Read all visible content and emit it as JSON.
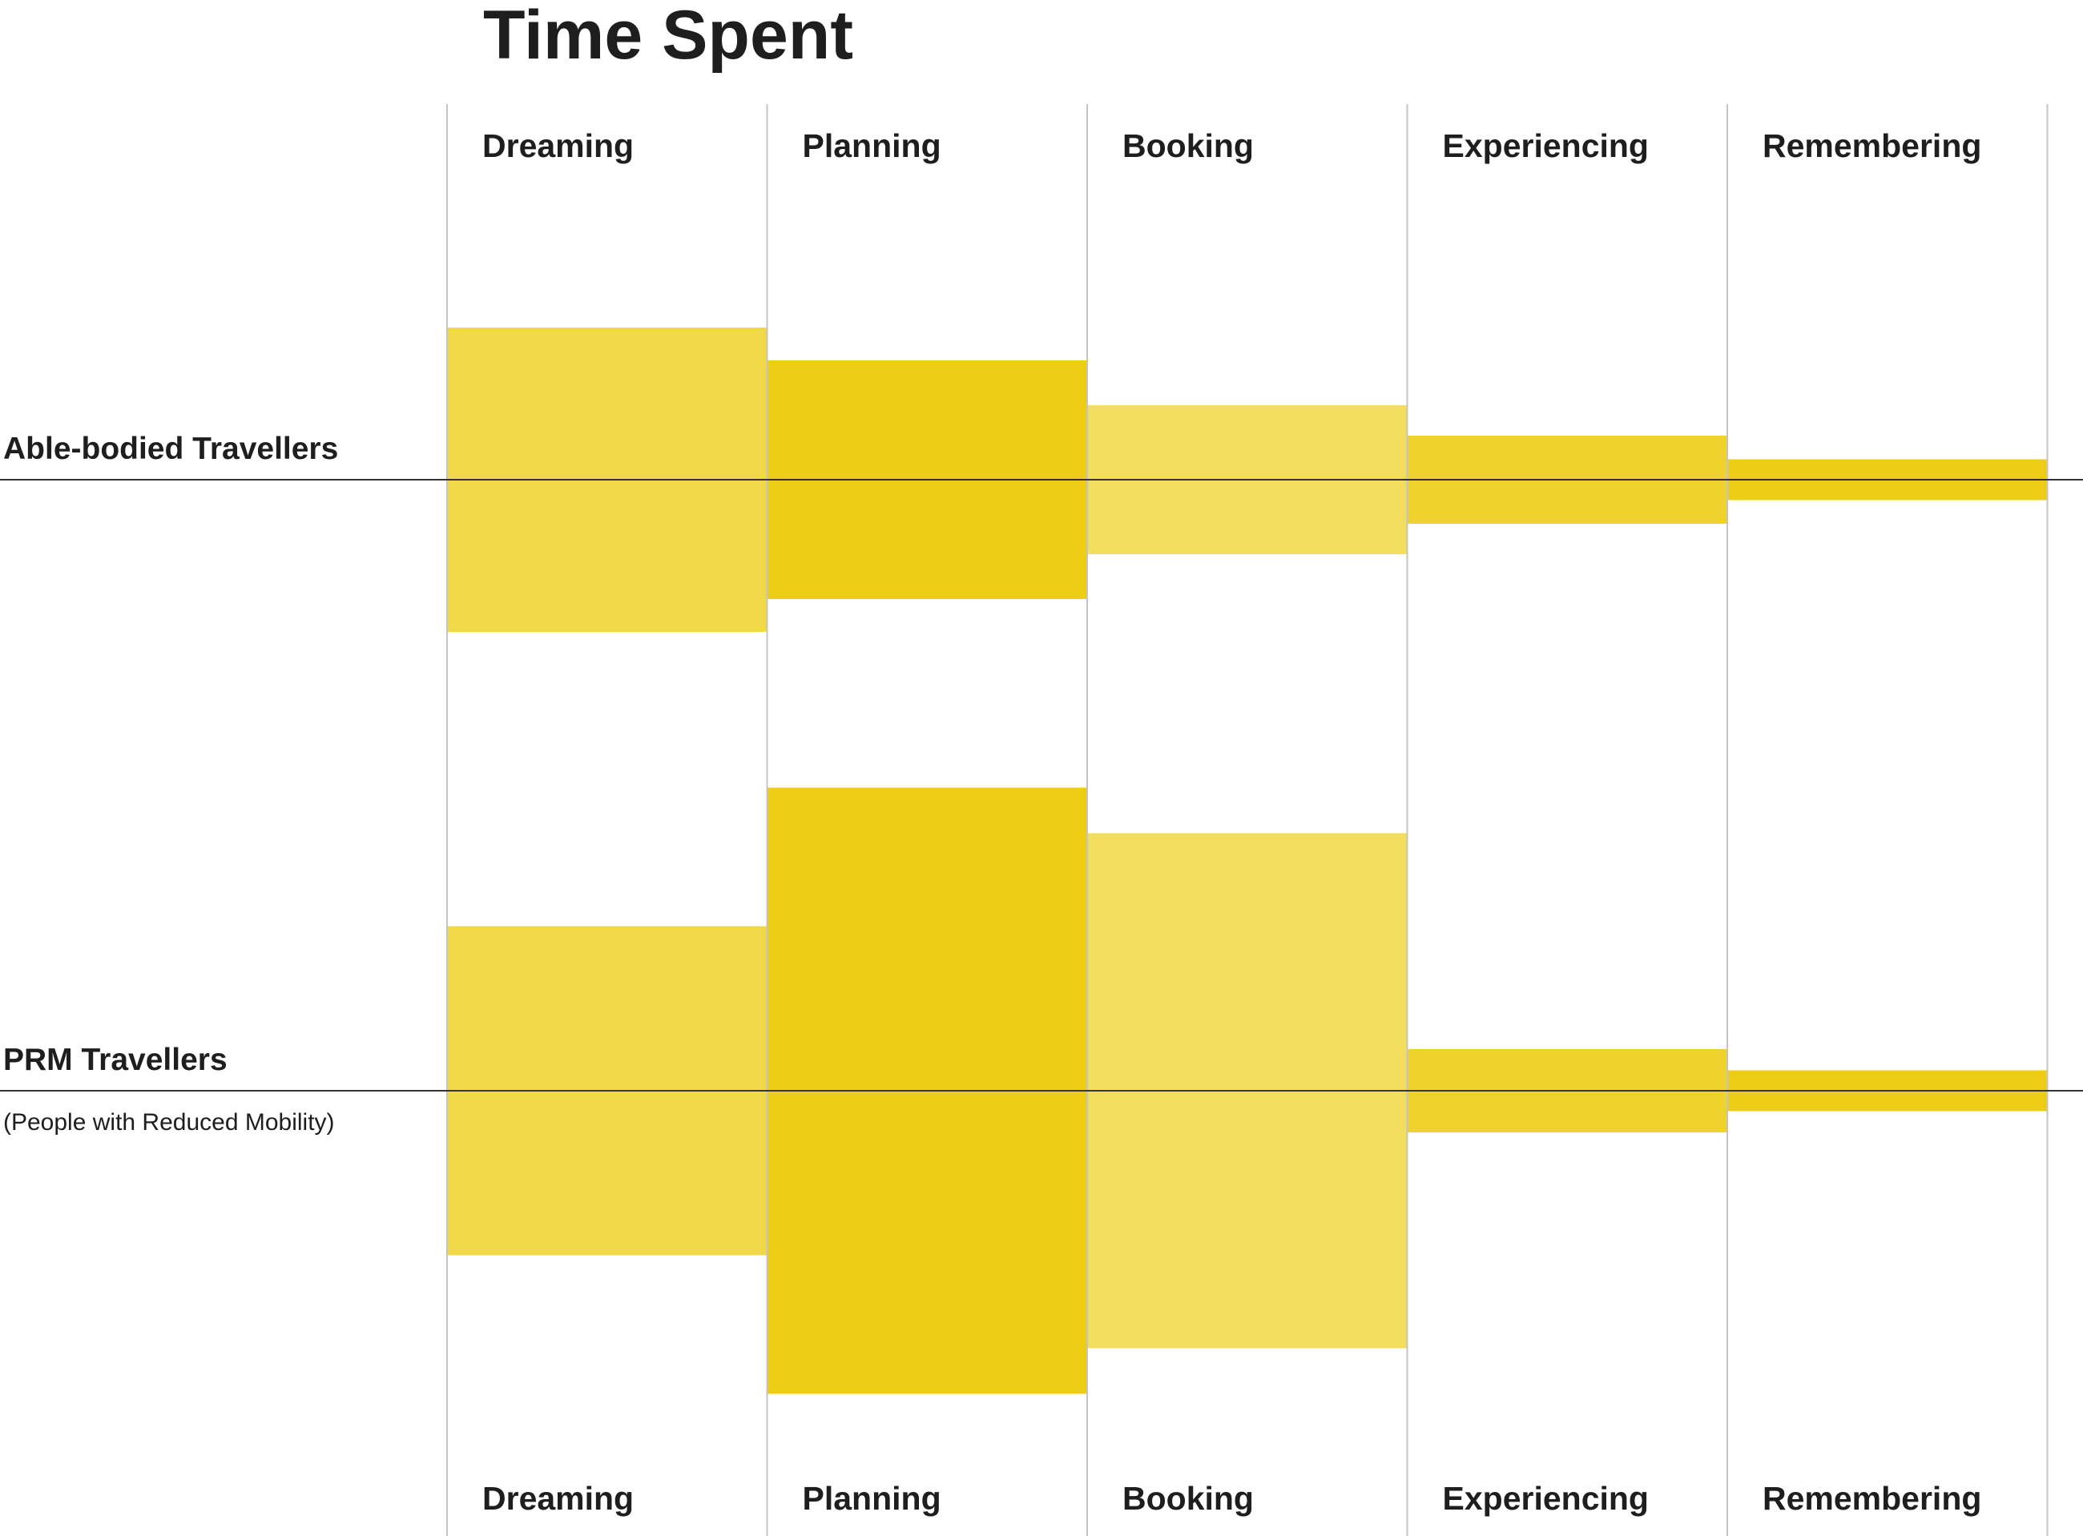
{
  "chart_data": {
    "type": "bar",
    "title": "Time Spent",
    "categories": [
      "Dreaming",
      "Planning",
      "Booking",
      "Experiencing",
      "Remembering"
    ],
    "series": [
      {
        "name": "Able-bodied Travellers",
        "subtitle": "",
        "values": [
          380,
          298,
          186,
          110,
          51
        ]
      },
      {
        "name": "PRM Travellers",
        "subtitle": "(People with Reduced Mobility)",
        "values": [
          411,
          757,
          643,
          104,
          51
        ]
      }
    ],
    "colors": [
      "#f0d848",
      "#edcd16",
      "#f2dd5f",
      "#efd22e",
      "#edcd16"
    ],
    "gridline_color": "#c4c4c4",
    "baseline_color": "#333333",
    "grid": true,
    "legend": "none"
  }
}
